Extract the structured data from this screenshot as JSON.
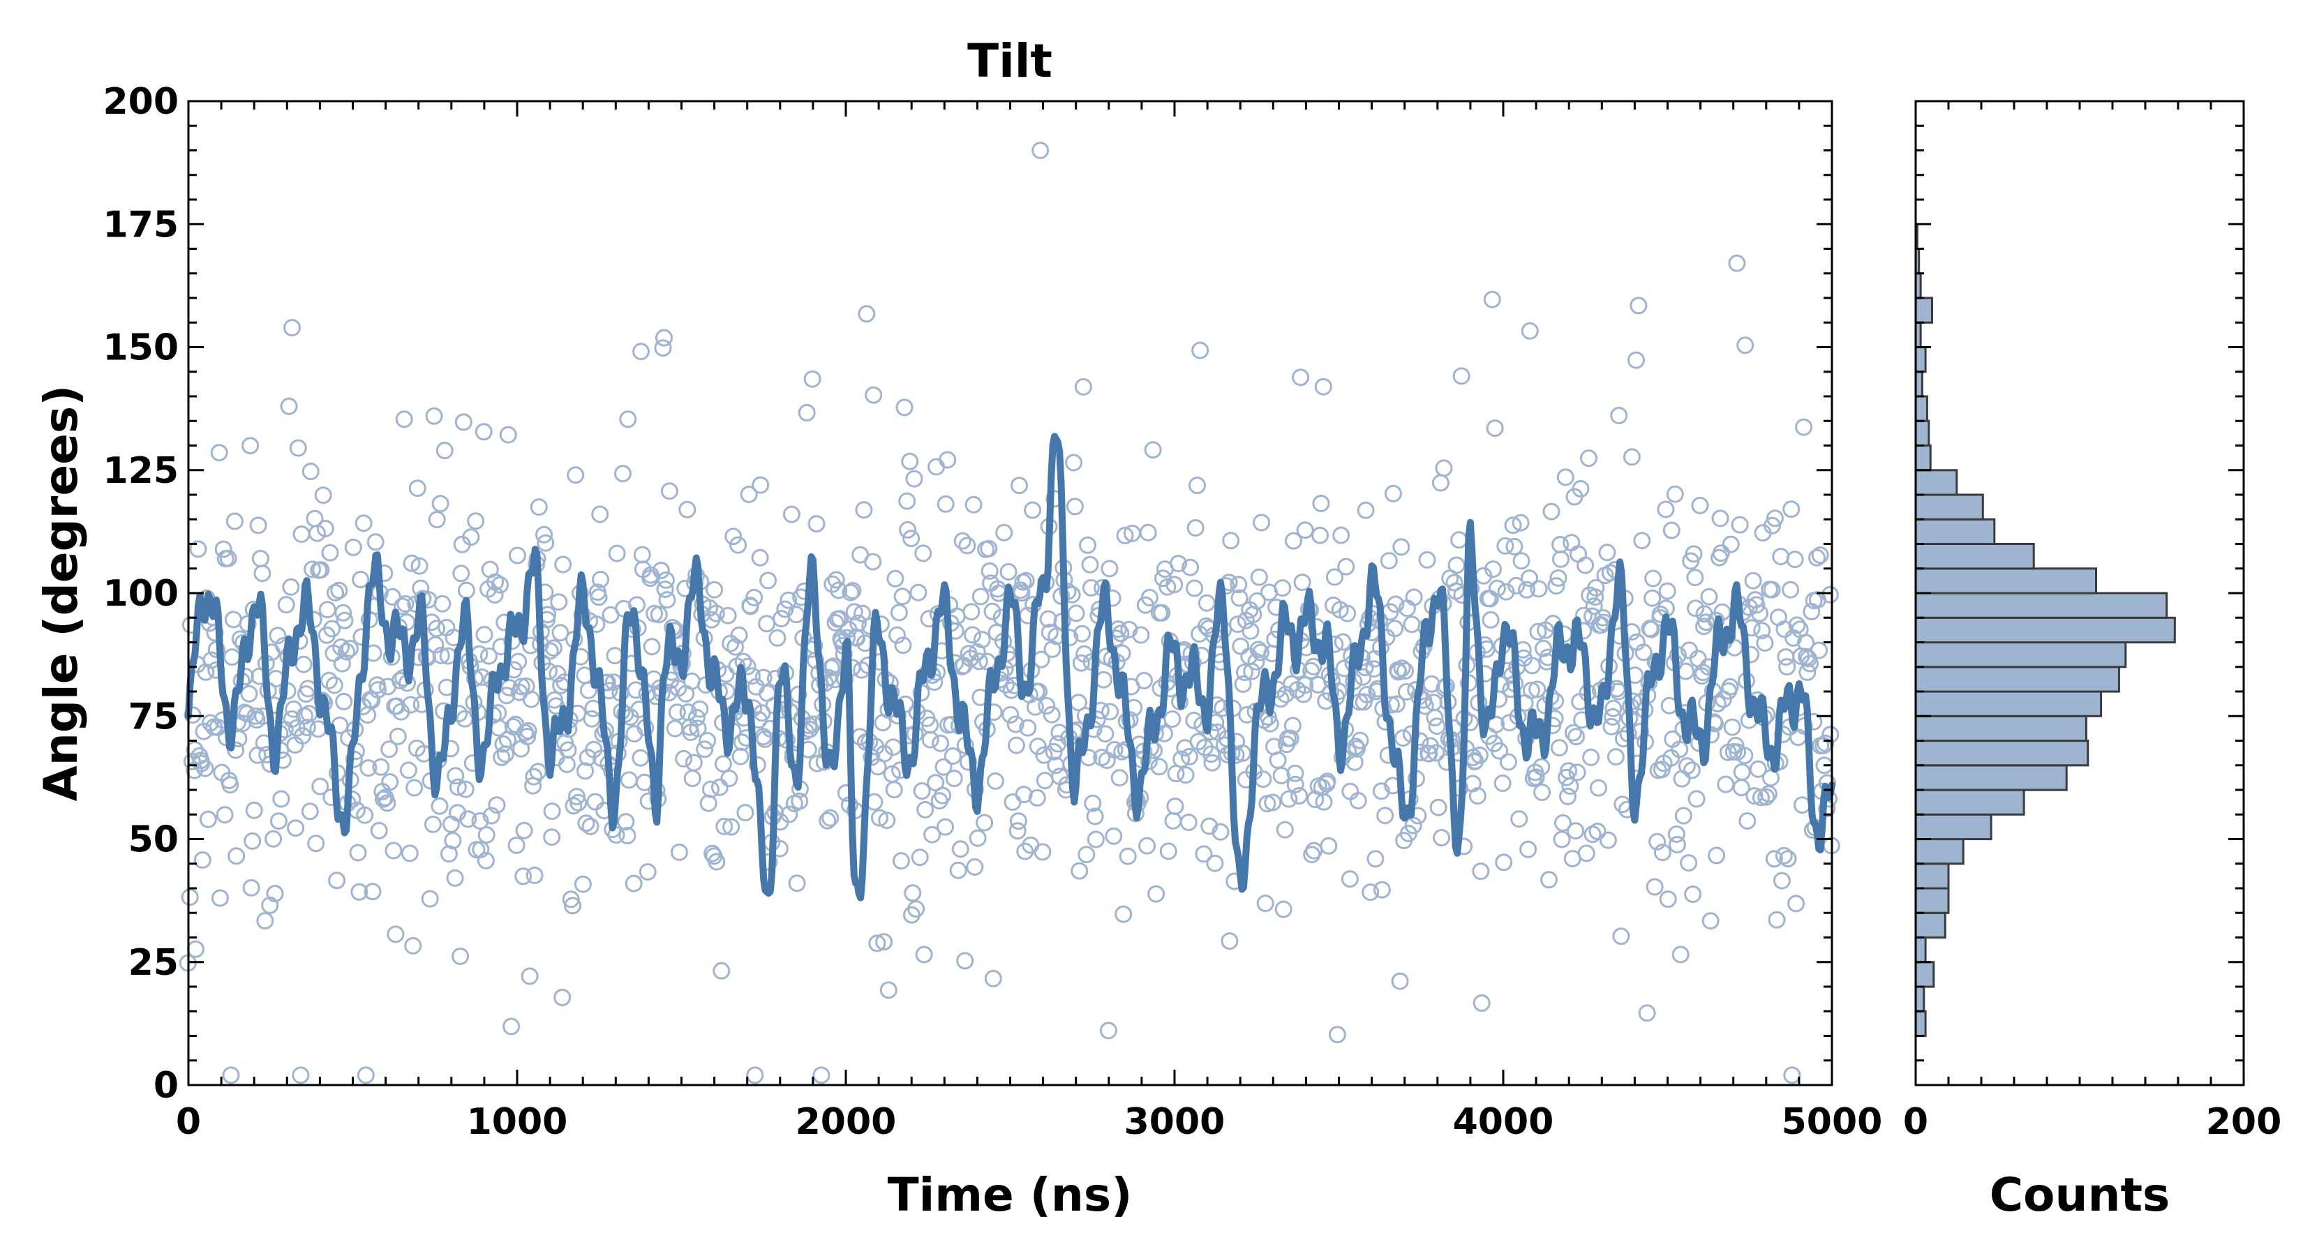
{
  "chart_data": [
    {
      "type": "scatter",
      "title": "Tilt",
      "xlabel": "Time (ns)",
      "ylabel": "Angle (degrees)",
      "xlim": [
        0,
        5000
      ],
      "ylim": [
        0,
        200
      ],
      "xticks": [
        "0",
        "1000",
        "2000",
        "3000",
        "4000",
        "5000"
      ],
      "yticks": [
        "0",
        "25",
        "50",
        "75",
        "100",
        "125",
        "150",
        "175",
        "200"
      ],
      "grid": false,
      "colors": {
        "points": "#9fb4d0",
        "line": "#4677aa"
      },
      "series": [
        {
          "kind": "scatter-open-circles",
          "n_points": 1500,
          "approx_mean": 80,
          "approx_sd": 20
        },
        {
          "kind": "smoothed-line"
        }
      ],
      "smoothed_line_keypoints": {
        "x": [
          0,
          50,
          140,
          200,
          260,
          330,
          480,
          560,
          700,
          760,
          830,
          900,
          950,
          1050,
          1100,
          1200,
          1290,
          1350,
          1420,
          1450,
          1550,
          1600,
          1700,
          1760,
          1800,
          1850,
          1900,
          1950,
          2000,
          2030,
          2100,
          2200,
          2300,
          2400,
          2500,
          2560,
          2600,
          2640,
          2700,
          2800,
          2900,
          3000,
          3100,
          3150,
          3200,
          3250,
          3350,
          3450,
          3500,
          3600,
          3700,
          3800,
          3870,
          3900,
          3950,
          4000,
          4100,
          4200,
          4300,
          4350,
          4400,
          4500,
          4600,
          4700,
          4800,
          4900,
          4950,
          5000
        ],
        "y": [
          75,
          98,
          78,
          95,
          72,
          96,
          60,
          98,
          90,
          62,
          95,
          62,
          90,
          100,
          68,
          95,
          62,
          98,
          55,
          88,
          98,
          78,
          80,
          33,
          85,
          68,
          100,
          60,
          95,
          36,
          88,
          70,
          96,
          60,
          100,
          80,
          100,
          131,
          62,
          95,
          60,
          90,
          75,
          100,
          40,
          70,
          96,
          88,
          75,
          96,
          60,
          98,
          55,
          110,
          65,
          95,
          66,
          95,
          70,
          108,
          62,
          92,
          68,
          100,
          66,
          85,
          50,
          55
        ]
      }
    },
    {
      "type": "bar",
      "orientation": "horizontal",
      "xlabel": "Counts",
      "xlim": [
        0,
        200
      ],
      "xticks": [
        "0",
        "200"
      ],
      "ylim": [
        0,
        200
      ],
      "bin_width": 5,
      "colors": {
        "fill": "#9fb4d0",
        "edge": "#3b3b3b"
      },
      "bins": [
        {
          "y0": 10,
          "y1": 15,
          "count": 6
        },
        {
          "y0": 15,
          "y1": 20,
          "count": 5
        },
        {
          "y0": 20,
          "y1": 25,
          "count": 11
        },
        {
          "y0": 25,
          "y1": 30,
          "count": 6
        },
        {
          "y0": 30,
          "y1": 35,
          "count": 18
        },
        {
          "y0": 35,
          "y1": 40,
          "count": 20
        },
        {
          "y0": 40,
          "y1": 45,
          "count": 20
        },
        {
          "y0": 45,
          "y1": 50,
          "count": 29
        },
        {
          "y0": 50,
          "y1": 55,
          "count": 46
        },
        {
          "y0": 55,
          "y1": 60,
          "count": 66
        },
        {
          "y0": 60,
          "y1": 65,
          "count": 92
        },
        {
          "y0": 65,
          "y1": 70,
          "count": 105
        },
        {
          "y0": 70,
          "y1": 75,
          "count": 104
        },
        {
          "y0": 75,
          "y1": 80,
          "count": 113
        },
        {
          "y0": 80,
          "y1": 85,
          "count": 124
        },
        {
          "y0": 85,
          "y1": 90,
          "count": 128
        },
        {
          "y0": 90,
          "y1": 95,
          "count": 158
        },
        {
          "y0": 95,
          "y1": 100,
          "count": 153
        },
        {
          "y0": 100,
          "y1": 105,
          "count": 110
        },
        {
          "y0": 105,
          "y1": 110,
          "count": 72
        },
        {
          "y0": 110,
          "y1": 115,
          "count": 48
        },
        {
          "y0": 115,
          "y1": 120,
          "count": 41
        },
        {
          "y0": 120,
          "y1": 125,
          "count": 25
        },
        {
          "y0": 125,
          "y1": 130,
          "count": 9
        },
        {
          "y0": 130,
          "y1": 135,
          "count": 8
        },
        {
          "y0": 135,
          "y1": 140,
          "count": 7
        },
        {
          "y0": 140,
          "y1": 145,
          "count": 4
        },
        {
          "y0": 145,
          "y1": 150,
          "count": 6
        },
        {
          "y0": 150,
          "y1": 155,
          "count": 3
        },
        {
          "y0": 155,
          "y1": 160,
          "count": 10
        },
        {
          "y0": 160,
          "y1": 165,
          "count": 3
        },
        {
          "y0": 165,
          "y1": 170,
          "count": 2
        },
        {
          "y0": 170,
          "y1": 175,
          "count": 1
        }
      ]
    }
  ]
}
